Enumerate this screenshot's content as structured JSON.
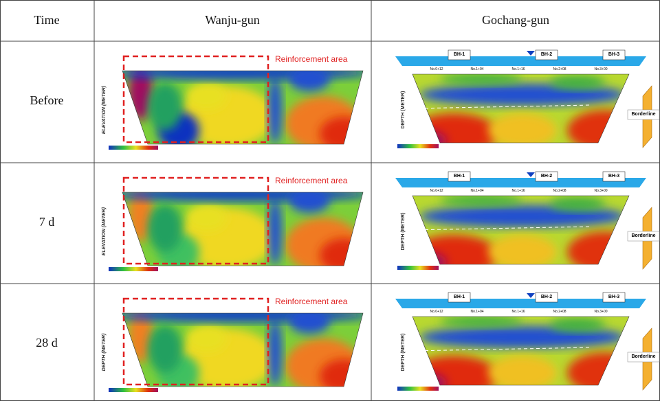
{
  "header": {
    "time": "Time",
    "wanju": "Wanju-gun",
    "gochang": "Gochang-gun"
  },
  "rows": [
    {
      "time": "Before",
      "wanju": {
        "annotation": "Reinforcement area",
        "axis_label": "ELEVATION (METER)"
      },
      "gochang": {
        "boreholes": [
          "BH-1",
          "BH-2",
          "BH-3"
        ],
        "stations": [
          "No.0+12",
          "No.1+04",
          "No.1+16",
          "No.2+08",
          "No.3+00"
        ],
        "axis_label": "DEPTH (METER)",
        "annotation": "Borderline"
      }
    },
    {
      "time": "7 d",
      "wanju": {
        "annotation": "Reinforcement area",
        "axis_label": "ELEVATION (METER)"
      },
      "gochang": {
        "boreholes": [
          "BH-1",
          "BH-2",
          "BH-3"
        ],
        "stations": [
          "No.0+12",
          "No.1+04",
          "No.1+16",
          "No.2+08",
          "No.3+00"
        ],
        "axis_label": "DEPTH (METER)",
        "annotation": "Borderline"
      }
    },
    {
      "time": "28 d",
      "wanju": {
        "annotation": "Reinforcement area",
        "axis_label": "DEPTH (METER)"
      },
      "gochang": {
        "boreholes": [
          "BH-1",
          "BH-2",
          "BH-3"
        ],
        "stations": [
          "No.0+12",
          "No.1+04",
          "No.1+16",
          "No.2+08",
          "No.3+00"
        ],
        "axis_label": "DEPTH (METER)",
        "annotation": "Borderline"
      }
    }
  ]
}
